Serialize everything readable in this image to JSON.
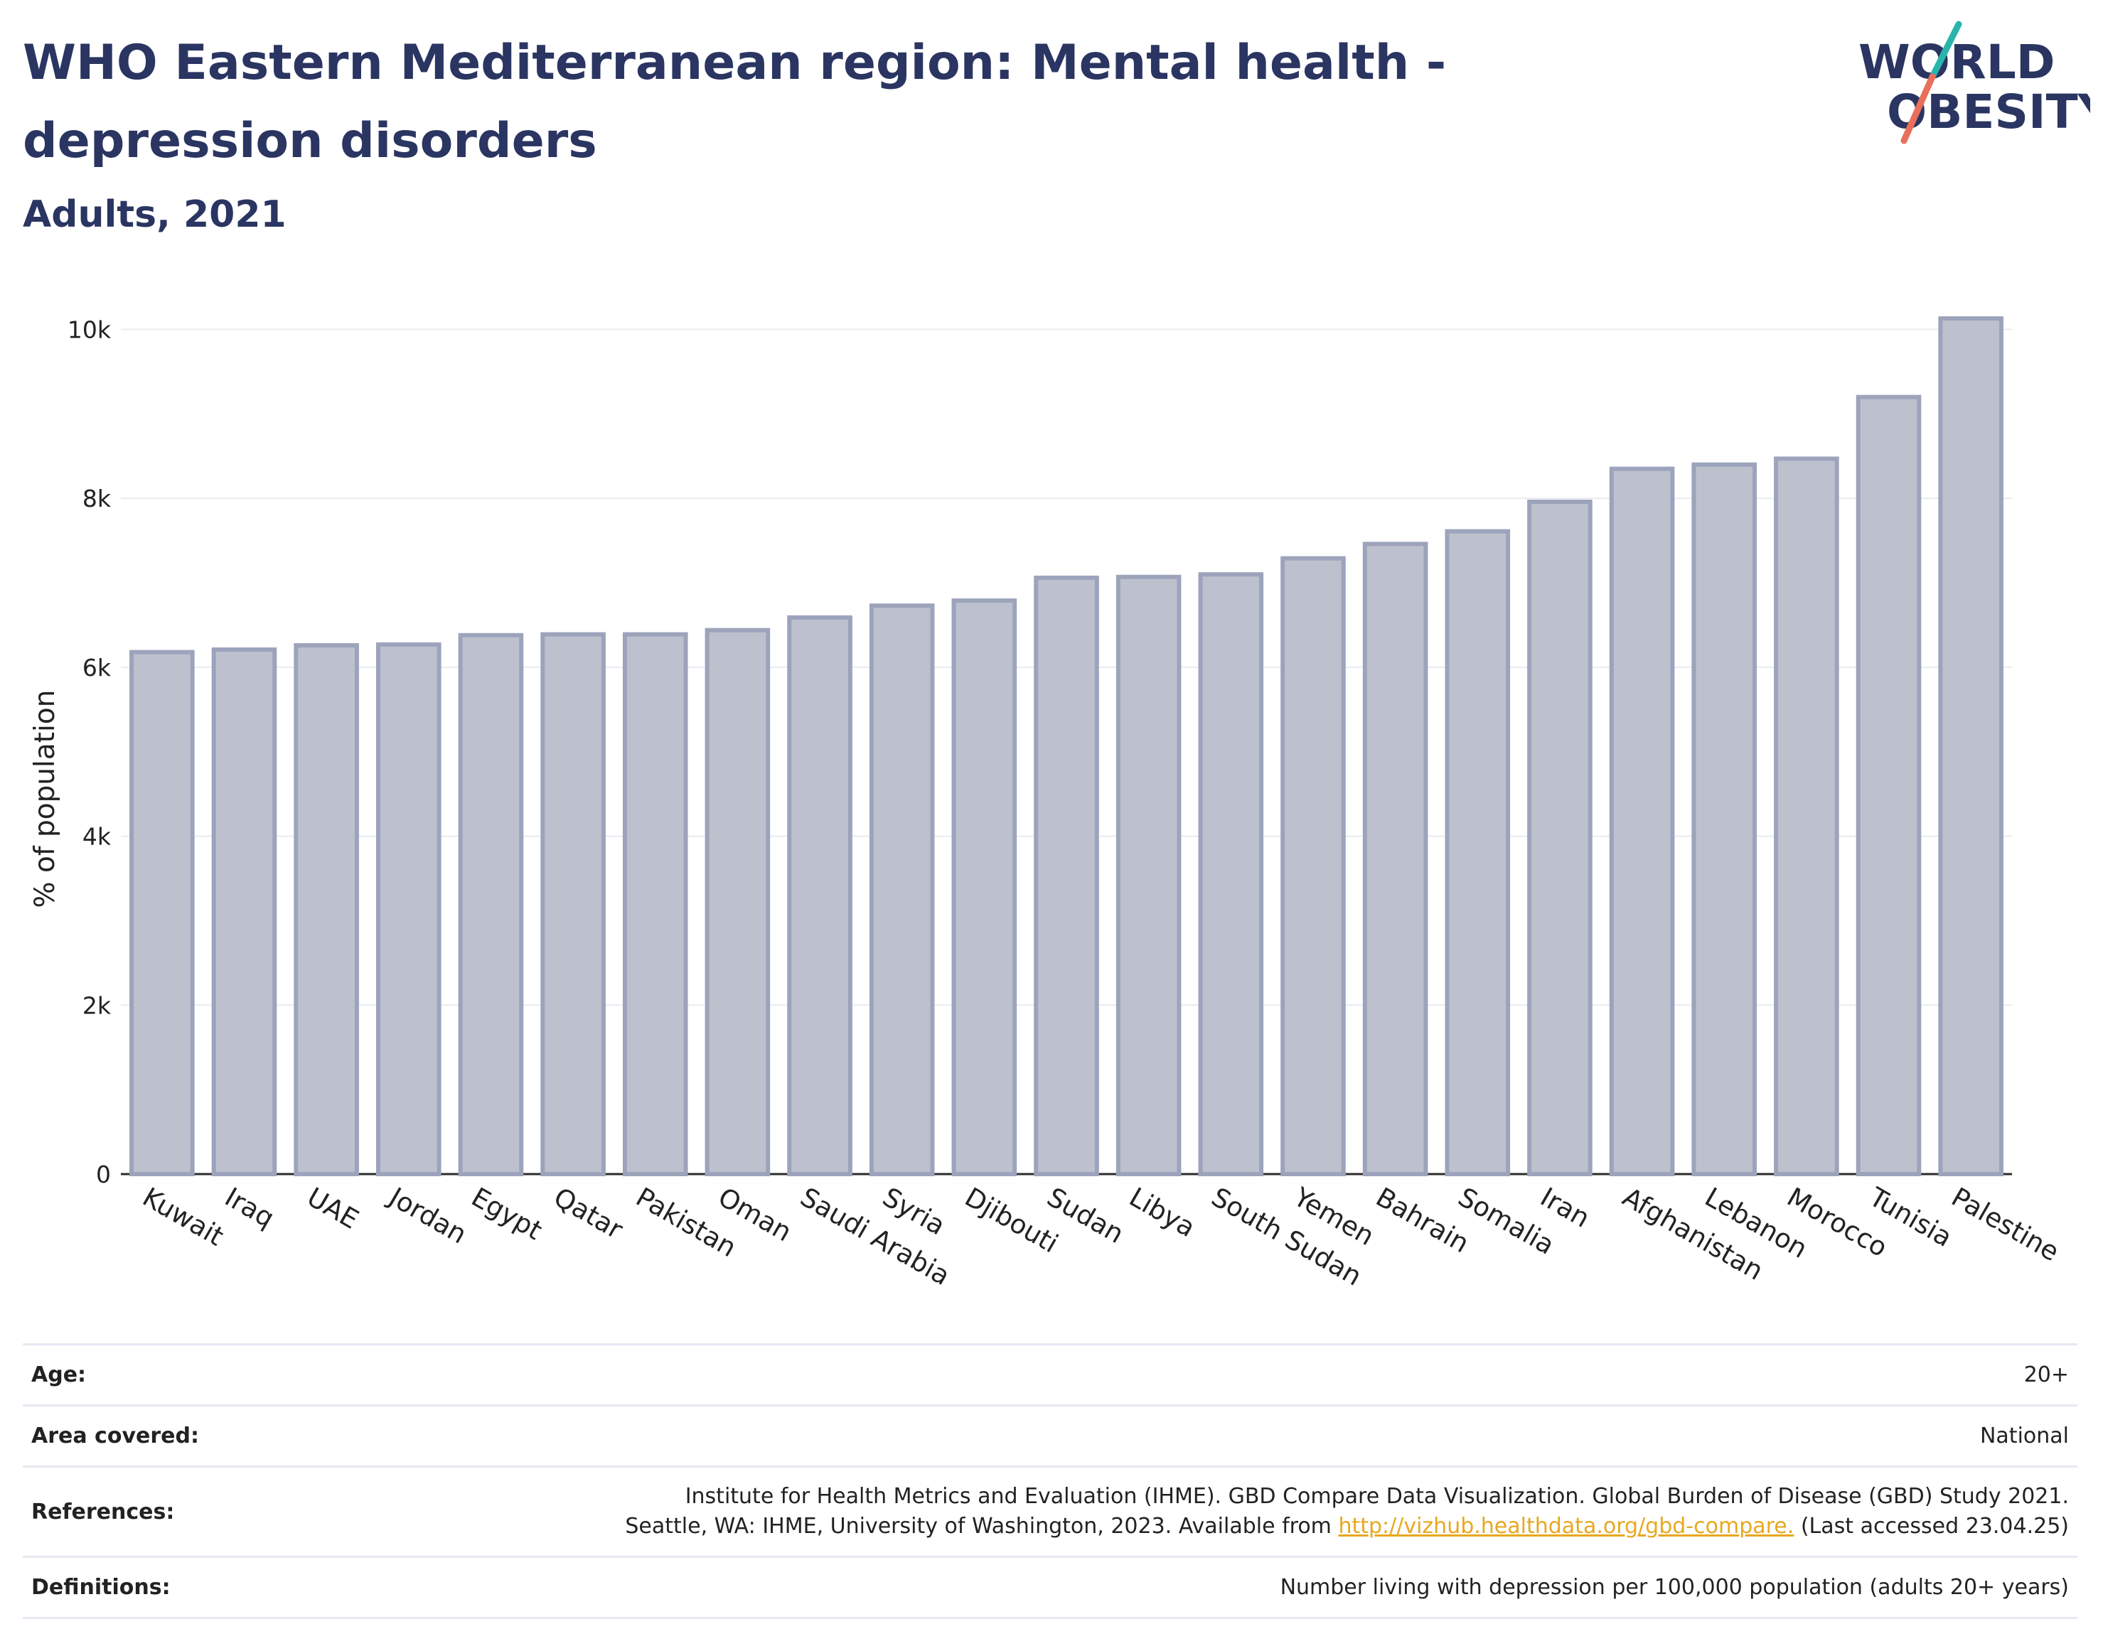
{
  "header": {
    "title": "WHO Eastern Mediterranean region: Mental health - depression disorders",
    "subtitle": "Adults, 2021"
  },
  "logo": {
    "line1": "WORLD",
    "line2": "OBESITY",
    "accent_teal": "#2ab5ac",
    "accent_coral": "#e8705a",
    "text_color": "#2b3562"
  },
  "chart_data": {
    "type": "bar",
    "ylabel": "% of population",
    "ylim": [
      0,
      10400
    ],
    "yticks": [
      0,
      2000,
      4000,
      6000,
      8000,
      10000
    ],
    "ytick_labels": [
      "0",
      "2k",
      "4k",
      "6k",
      "8k",
      "10k"
    ],
    "grid": true,
    "bar_fill": "#bdc1ce",
    "bar_stroke": "#9ca3bb",
    "categories": [
      "Kuwait",
      "Iraq",
      "UAE",
      "Jordan",
      "Egypt",
      "Qatar",
      "Pakistan",
      "Oman",
      "Saudi Arabia",
      "Syria",
      "Djibouti",
      "Sudan",
      "Libya",
      "South Sudan",
      "Yemen",
      "Bahrain",
      "Somalia",
      "Iran",
      "Afghanistan",
      "Lebanon",
      "Morocco",
      "Tunisia",
      "Palestine"
    ],
    "values": [
      6180,
      6210,
      6260,
      6270,
      6380,
      6390,
      6390,
      6440,
      6590,
      6730,
      6790,
      7060,
      7070,
      7100,
      7290,
      7460,
      7610,
      7960,
      8350,
      8400,
      8470,
      9200,
      10130
    ]
  },
  "info": {
    "age_label": "Age:",
    "age_value": "20+",
    "area_label": "Area covered:",
    "area_value": "National",
    "references_label": "References:",
    "references_line1": "Institute for Health Metrics and Evaluation (IHME). GBD Compare Data Visualization. Global Burden of Disease (GBD) Study 2021.",
    "references_line2_pre": "Seattle, WA: IHME, University of Washington, 2023. Available from ",
    "references_link": "http://vizhub.healthdata.org/gbd-compare.",
    "references_line2_post": " (Last accessed 23.04.25)",
    "definitions_label": "Definitions:",
    "definitions_value": "Number living with depression per 100,000 population (adults 20+ years)"
  }
}
